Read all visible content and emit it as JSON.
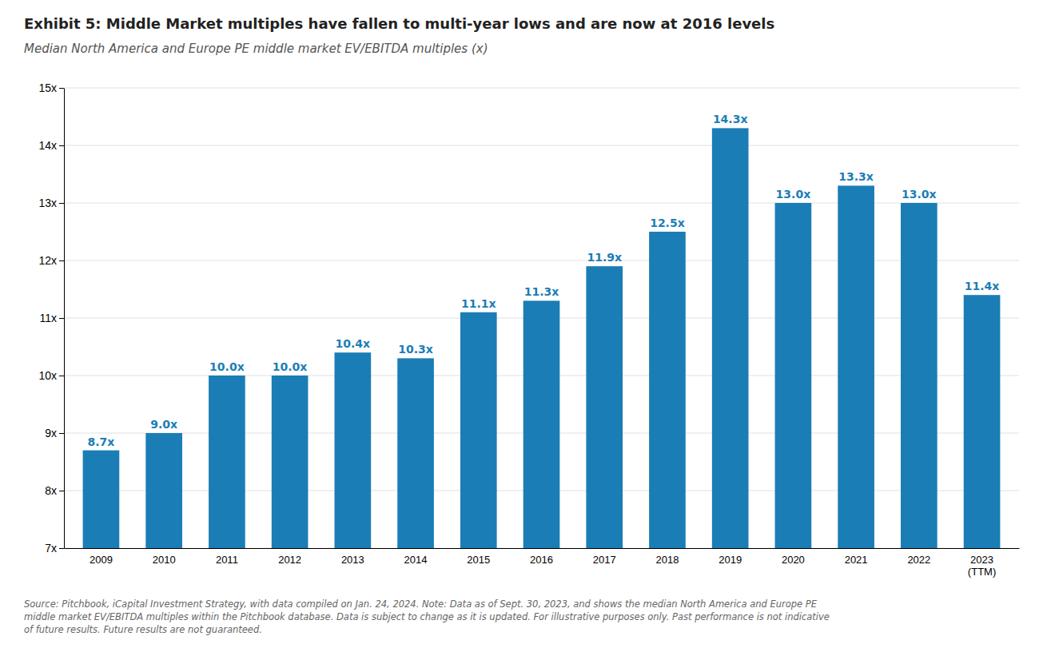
{
  "chart_data": {
    "type": "bar",
    "title": "Exhibit 5: Middle Market multiples have fallen to multi-year lows and are now at 2016 levels",
    "subtitle": "Median North America and Europe PE middle market EV/EBITDA multiples (x)",
    "footnote": [
      "Source: Pitchbook, iCapital Investment Strategy, with data compiled on Jan. 24, 2024. Note: Data as of Sept. 30, 2023, and shows the median North America and Europe PE",
      "middle market EV/EBITDA multiples within the Pitchbook database. Data is subject to change as it is updated. For illustrative purposes only. Past performance is not indicative",
      "of future results. Future results are not guaranteed."
    ],
    "categories": [
      "2009",
      "2010",
      "2011",
      "2012",
      "2013",
      "2014",
      "2015",
      "2016",
      "2017",
      "2018",
      "2019",
      "2020",
      "2021",
      "2022",
      "2023\n(TTM)"
    ],
    "values": [
      8.7,
      9.0,
      10.0,
      10.0,
      10.4,
      10.3,
      11.1,
      11.3,
      11.9,
      12.5,
      14.3,
      13.0,
      13.3,
      13.0,
      11.4
    ],
    "value_labels": [
      "8.7x",
      "9.0x",
      "10.0x",
      "10.0x",
      "10.4x",
      "10.3x",
      "11.1x",
      "11.3x",
      "11.9x",
      "12.5x",
      "14.3x",
      "13.0x",
      "13.3x",
      "13.0x",
      "11.4x"
    ],
    "data_labels": true,
    "color": "#1b7db5",
    "ylim": [
      7,
      15
    ],
    "yticks": [
      {
        "value": 7,
        "label": "7x"
      },
      {
        "value": 8,
        "label": "8x"
      },
      {
        "value": 9,
        "label": "9x"
      },
      {
        "value": 10,
        "label": "10x"
      },
      {
        "value": 11,
        "label": "11x"
      },
      {
        "value": 12,
        "label": "12x"
      },
      {
        "value": 13,
        "label": "13x"
      },
      {
        "value": 14,
        "label": "14x"
      },
      {
        "value": 15,
        "label": "15x"
      }
    ],
    "grid": true
  }
}
